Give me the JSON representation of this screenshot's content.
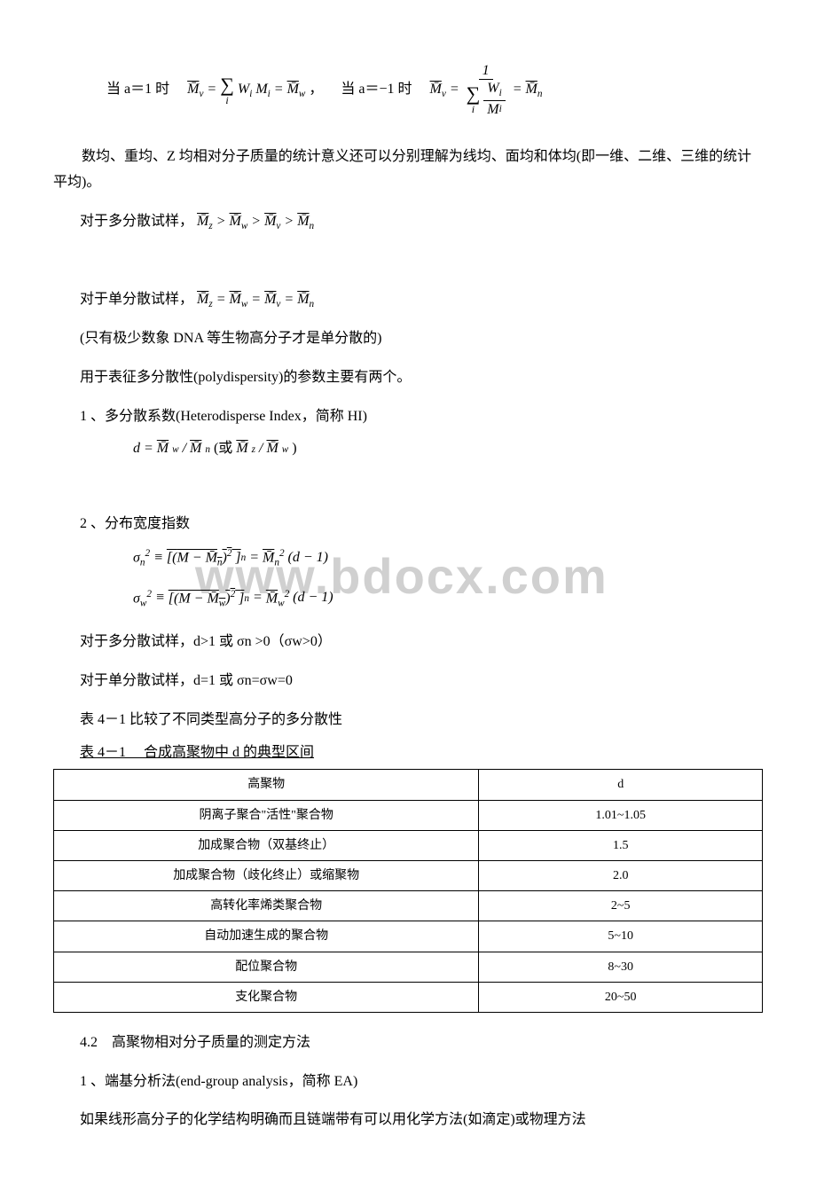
{
  "watermark": "www.bdocx.com",
  "eq1": {
    "prefix_cn": "当 a＝1 时",
    "lhs": "M̄",
    "lhs_sub": "v",
    "eq": " = ",
    "sum_sym": "∑",
    "sum_idx": "i",
    "term1": "W",
    "term1_sub": "i",
    "term2": "M",
    "term2_sub": "i",
    "rhs": "M̄",
    "rhs_sub": "w",
    "sep": "，"
  },
  "eq2": {
    "prefix_cn": "当 a＝−1 时",
    "lhs": "M̄",
    "lhs_sub": "v",
    "eq": " = ",
    "num": "1",
    "den_sum": "∑",
    "den_idx": "i",
    "den_frac_num": "W",
    "den_frac_num_sub": "i",
    "den_frac_den": "M",
    "den_frac_den_sub": "i",
    "rhs": "M̄",
    "rhs_sub": "n"
  },
  "p1": "数均、重均、Z 均相对分子质量的统计意义还可以分别理解为线均、面均和体均(即一维、二维、三维的统计平均)。",
  "p2_prefix": "对于多分散试样，",
  "ineq": {
    "a": "M̄",
    "a_sub": "z",
    "gt1": " > ",
    "b": "M̄",
    "b_sub": "w",
    "gt2": " > ",
    "c": "M̄",
    "c_sub": "v",
    "gt3": " > ",
    "d": "M̄",
    "d_sub": "n"
  },
  "p3_prefix": "对于单分散试样，",
  "eqchain": {
    "a": "M̄",
    "a_sub": "z",
    "e1": " = ",
    "b": "M̄",
    "b_sub": "w",
    "e2": " = ",
    "c": "M̄",
    "c_sub": "v",
    "e3": " = ",
    "d": "M̄",
    "d_sub": "n"
  },
  "p4": "(只有极少数象 DNA 等生物高分子才是单分散的)",
  "p5": "用于表征多分散性(polydispersity)的参数主要有两个。",
  "item1": "1 、多分散系数(Heterodisperse Index，简称 HI)",
  "item1_formula": {
    "d": "d",
    "eq": " = ",
    "a": "M̄",
    "a_sub": "w",
    "slash1": " / ",
    "b": "M̄",
    "b_sub": "n",
    "open": "(或",
    "c": "M̄",
    "c_sub": "z",
    "slash2": " / ",
    "e": "M̄",
    "e_sub": "w",
    "close": ")"
  },
  "item2": "2 、分布宽度指数",
  "item2_f1": {
    "sigma": "σ",
    "sigma_sub": "n",
    "sigma_sup": "2",
    "eq1": " ≡ ",
    "br_open": "[(",
    "m": "M − ",
    "mbar": "M̄",
    "mbar_sub": "n",
    "paren": ")",
    "pow": "2",
    "br_close": " ]",
    "outer_sub": "n",
    "eq2": " = ",
    "mbar2": "M̄",
    "mbar2_sub": "n",
    "mbar2_sup": "2",
    "tail": "(d − 1)"
  },
  "item2_f2": {
    "sigma": "σ",
    "sigma_sub": "w",
    "sigma_sup": "2",
    "eq1": " ≡ ",
    "br_open": "[(",
    "m": "M − ",
    "mbar": "M̄",
    "mbar_sub": "w",
    "paren": ")",
    "pow": "2",
    "br_close": " ]",
    "outer_sub": "n",
    "eq2": " = ",
    "mbar2": "M̄",
    "mbar2_sub": "w",
    "mbar2_sup": "2",
    "tail": "(d − 1)"
  },
  "p6": "对于多分散试样，d>1 或 σn >0（σw>0）",
  "p7": "对于单分散试样，d=1 或 σn=σw=0",
  "p8": "表 4－1 比较了不同类型高分子的多分散性",
  "table_caption": "表 4－1 　合成高聚物中 d 的典型区间",
  "table": {
    "headers": [
      "高聚物",
      "d"
    ],
    "rows": [
      [
        "阴离子聚合\"活性\"聚合物",
        "1.01~1.05"
      ],
      [
        "加成聚合物（双基终止）",
        "1.5"
      ],
      [
        "加成聚合物（歧化终止）或缩聚物",
        "2.0"
      ],
      [
        "高转化率烯类聚合物",
        "2~5"
      ],
      [
        "自动加速生成的聚合物",
        "5~10"
      ],
      [
        "配位聚合物",
        "8~30"
      ],
      [
        "支化聚合物",
        "20~50"
      ]
    ],
    "col_widths": [
      "60%",
      "40%"
    ]
  },
  "sec42": "4.2　高聚物相对分子质量的测定方法",
  "method1": "1 、端基分析法(end-group analysis，简称 EA)",
  "p9": "如果线形高分子的化学结构明确而且链端带有可以用化学方法(如滴定)或物理方法"
}
